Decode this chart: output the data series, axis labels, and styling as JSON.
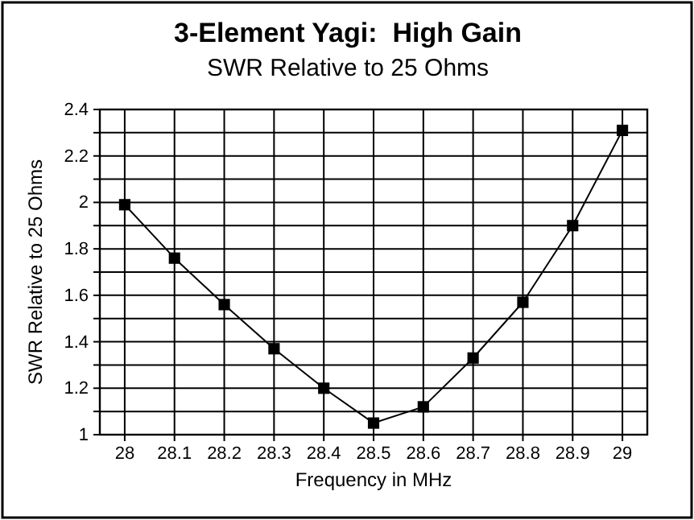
{
  "chart_data": {
    "type": "line",
    "title": "3-Element Yagi:  High Gain",
    "subtitle": "SWR Relative to 25 Ohms",
    "xlabel": "Frequency in MHz",
    "ylabel": "SWR Relative to 25 Ohms",
    "x": [
      28,
      28.1,
      28.2,
      28.3,
      28.4,
      28.5,
      28.6,
      28.7,
      28.8,
      28.9,
      29
    ],
    "series": [
      {
        "color": "#000000",
        "values": [
          1.99,
          1.76,
          1.56,
          1.37,
          1.2,
          1.05,
          1.12,
          1.33,
          1.57,
          1.9,
          2.31
        ]
      }
    ],
    "xlim": [
      27.95,
      29.05
    ],
    "xticks": [
      28,
      28.1,
      28.2,
      28.3,
      28.4,
      28.5,
      28.6,
      28.7,
      28.8,
      28.9,
      29
    ],
    "ylim": [
      1,
      2.4
    ],
    "yticks": [
      1,
      {
        "value": 1.1,
        "label": null
      },
      1.2,
      {
        "value": 1.3,
        "label": null
      },
      1.4,
      {
        "value": 1.5,
        "label": null
      },
      1.6,
      {
        "value": 1.7,
        "label": null
      },
      1.8,
      {
        "value": 1.9,
        "label": null
      },
      2,
      {
        "value": 2.1,
        "label": null
      },
      2.2,
      {
        "value": 2.3,
        "label": null
      },
      2.4
    ],
    "grid": true,
    "marker": "square",
    "line_style": "solid"
  }
}
